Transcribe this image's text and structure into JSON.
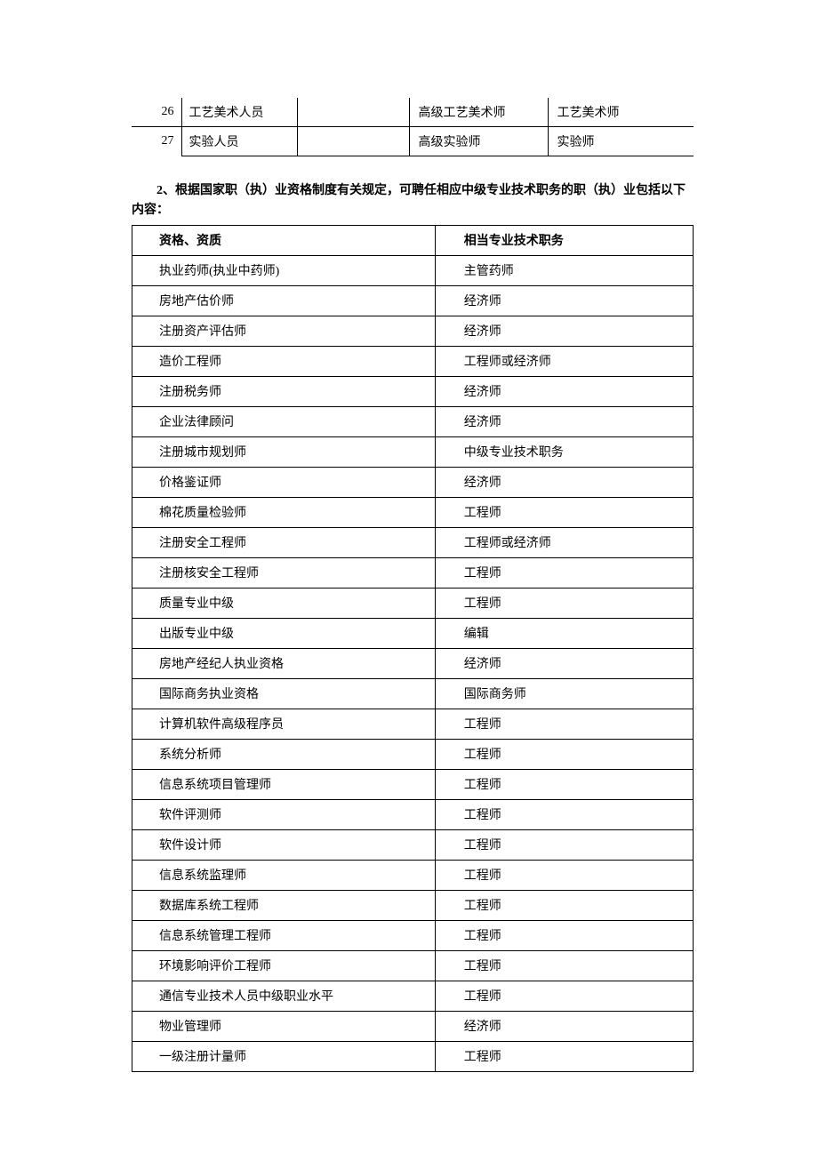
{
  "table1": {
    "type": "table",
    "rows": [
      {
        "num": "26",
        "name": "工艺美术人员",
        "blank": "",
        "senior": "高级工艺美术师",
        "mid": "工艺美术师"
      },
      {
        "num": "27",
        "name": "实验人员",
        "blank": "",
        "senior": "高级实验师",
        "mid": "实验师"
      }
    ]
  },
  "section_title": "2、根据国家职（执）业资格制度有关规定，可聘任相应中级专业技术职务的职（执）业包括以下内容：",
  "table2": {
    "type": "table",
    "columns": [
      "资格、资质",
      "相当专业技术职务"
    ],
    "rows": [
      [
        "执业药师(执业中药师)",
        "主管药师"
      ],
      [
        "房地产估价师",
        "经济师"
      ],
      [
        "注册资产评估师",
        "经济师"
      ],
      [
        "造价工程师",
        "工程师或经济师"
      ],
      [
        "注册税务师",
        "经济师"
      ],
      [
        "企业法律顾问",
        "经济师"
      ],
      [
        "注册城市规划师",
        "中级专业技术职务"
      ],
      [
        "价格鉴证师",
        "经济师"
      ],
      [
        "棉花质量检验师",
        "工程师"
      ],
      [
        "注册安全工程师",
        "工程师或经济师"
      ],
      [
        "注册核安全工程师",
        "工程师"
      ],
      [
        "质量专业中级",
        "工程师"
      ],
      [
        "出版专业中级",
        "编辑"
      ],
      [
        "房地产经纪人执业资格",
        "经济师"
      ],
      [
        "国际商务执业资格",
        "国际商务师"
      ],
      [
        "计算机软件高级程序员",
        "工程师"
      ],
      [
        "系统分析师",
        "工程师"
      ],
      [
        "信息系统项目管理师",
        "工程师"
      ],
      [
        "软件评测师",
        "工程师"
      ],
      [
        "软件设计师",
        "工程师"
      ],
      [
        "信息系统监理师",
        "工程师"
      ],
      [
        "数据库系统工程师",
        "工程师"
      ],
      [
        "信息系统管理工程师",
        "工程师"
      ],
      [
        "环境影响评价工程师",
        "工程师"
      ],
      [
        "通信专业技术人员中级职业水平",
        "工程师"
      ],
      [
        "物业管理师",
        "经济师"
      ],
      [
        "一级注册计量师",
        "工程师"
      ]
    ]
  }
}
